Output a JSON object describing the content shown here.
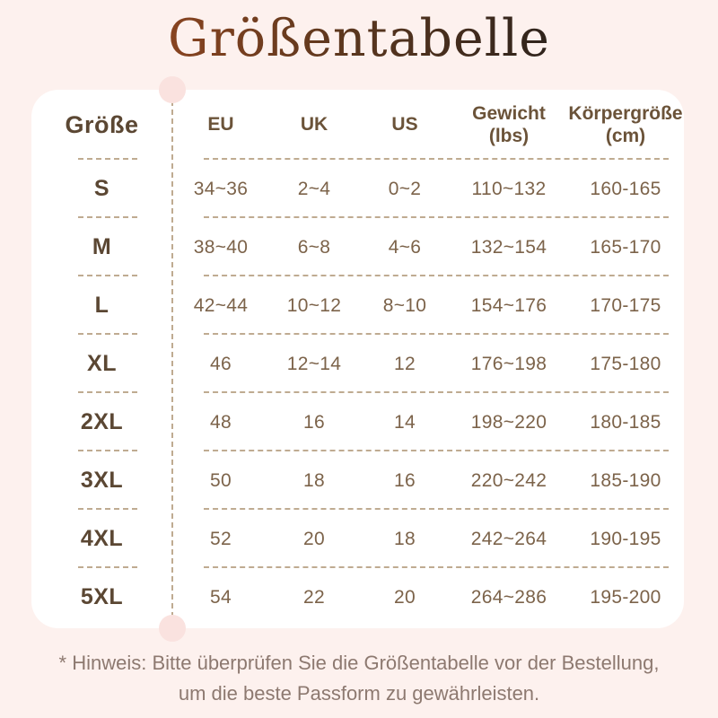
{
  "page": {
    "title": "Größentabelle",
    "footer_note": "* Hinweis: Bitte überprüfen Sie die Größentabelle vor der Bestellung,\num die beste Passform zu gewährleisten."
  },
  "colors": {
    "background": "#fdf1ee",
    "card": "#ffffff",
    "notch": "#fae2df",
    "title_gradient_start": "#8e4520",
    "title_gradient_mid": "#5c371e",
    "title_gradient_end": "#2a211c",
    "header_text": "#6b5339",
    "size_text": "#5b4733",
    "value_text": "#7c634a",
    "dash": "#bfab91",
    "footer_text": "#8d7970"
  },
  "table": {
    "headers": [
      "Größe",
      "EU",
      "UK",
      "US",
      "Gewicht\n(lbs)",
      "Körpergröße\n(cm)"
    ],
    "rows": [
      {
        "size": "S",
        "values": [
          "34~36",
          "2~4",
          "0~2",
          "110~132",
          "160-165"
        ]
      },
      {
        "size": "M",
        "values": [
          "38~40",
          "6~8",
          "4~6",
          "132~154",
          "165-170"
        ]
      },
      {
        "size": "L",
        "values": [
          "42~44",
          "10~12",
          "8~10",
          "154~176",
          "170-175"
        ]
      },
      {
        "size": "XL",
        "values": [
          "46",
          "12~14",
          "12",
          "176~198",
          "175-180"
        ]
      },
      {
        "size": "2XL",
        "values": [
          "48",
          "16",
          "14",
          "198~220",
          "180-185"
        ]
      },
      {
        "size": "3XL",
        "values": [
          "50",
          "18",
          "16",
          "220~242",
          "185-190"
        ]
      },
      {
        "size": "4XL",
        "values": [
          "52",
          "20",
          "18",
          "242~264",
          "190-195"
        ]
      },
      {
        "size": "5XL",
        "values": [
          "54",
          "22",
          "20",
          "264~286",
          "195-200"
        ]
      }
    ]
  }
}
